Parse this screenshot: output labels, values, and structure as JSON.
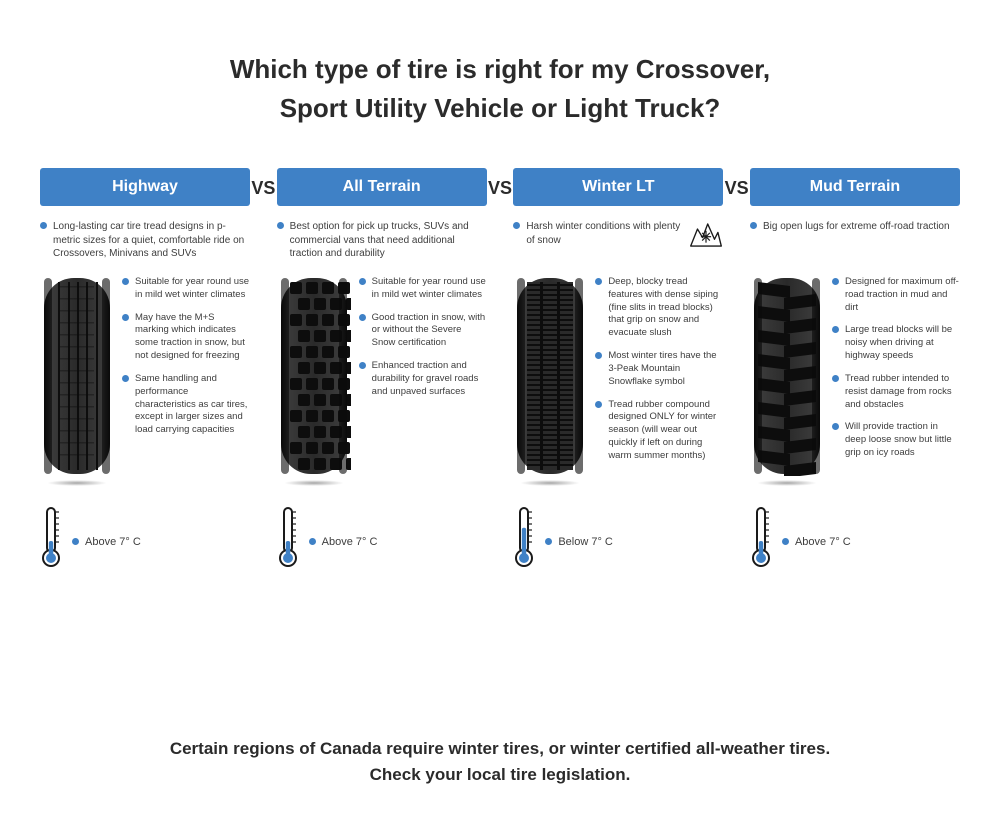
{
  "title_line1": "Which type of tire is right for my Crossover,",
  "title_line2": "Sport Utility Vehicle or Light Truck?",
  "vs_label": "VS",
  "footer_line1": "Certain regions of Canada require winter tires, or winter certified all-weather tires.",
  "footer_line2": "Check your local tire legislation.",
  "colors": {
    "accent": "#3f81c6",
    "text": "#2b2b2b",
    "body_text": "#3d3d3d",
    "background": "#ffffff",
    "tire_dark": "#1a1a1a",
    "tire_mid": "#3a3a3a",
    "therm_outline": "#1a1a1a",
    "therm_fill": "#3f81c6"
  },
  "tires": [
    {
      "name": "Highway",
      "intro": "Long-lasting car tire tread designs in p- metric sizes for a quiet, comfortable ride on Crossovers, Minivans and SUVs",
      "tread_style": "highway",
      "features": [
        "Suitable for year round use in mild wet winter climates",
        "May have the M+S marking which indicates some traction in snow, but not designed for freezing",
        "Same handling and performance characteristics as car tires, except in larger sizes and load carrying capacities"
      ],
      "temp_label": "Above 7° C",
      "temp_fill": 0.25,
      "show_snow_icon": false
    },
    {
      "name": "All Terrain",
      "intro": "Best option for pick up trucks, SUVs and commercial vans that need additional traction and durability",
      "tread_style": "allterrain",
      "features": [
        "Suitable for year round use in mild wet winter climates",
        "Good traction in snow, with or without the Severe Snow certification",
        "Enhanced traction and durability for gravel roads and unpaved surfaces"
      ],
      "temp_label": "Above 7° C",
      "temp_fill": 0.25,
      "show_snow_icon": false
    },
    {
      "name": "Winter LT",
      "intro": "Harsh winter conditions with plenty of snow",
      "tread_style": "winter",
      "features": [
        "Deep, blocky tread features with dense siping (fine slits in tread blocks) that grip on snow and evacuate slush",
        "Most winter tires have the 3-Peak Mountain Snowflake symbol",
        "Tread rubber compound designed ONLY for winter season (will wear out quickly if left on during warm summer months)"
      ],
      "temp_label": "Below 7° C",
      "temp_fill": 0.55,
      "show_snow_icon": true
    },
    {
      "name": "Mud Terrain",
      "intro": "Big open lugs for extreme off-road traction",
      "tread_style": "mud",
      "features": [
        "Designed for maximum off-road traction in mud and dirt",
        "Large tread blocks will be noisy when driving at highway speeds",
        "Tread rubber intended to resist damage from rocks and obstacles",
        "Will provide traction in deep loose snow but little grip on icy roads"
      ],
      "temp_label": "Above 7° C",
      "temp_fill": 0.25,
      "show_snow_icon": false
    }
  ]
}
